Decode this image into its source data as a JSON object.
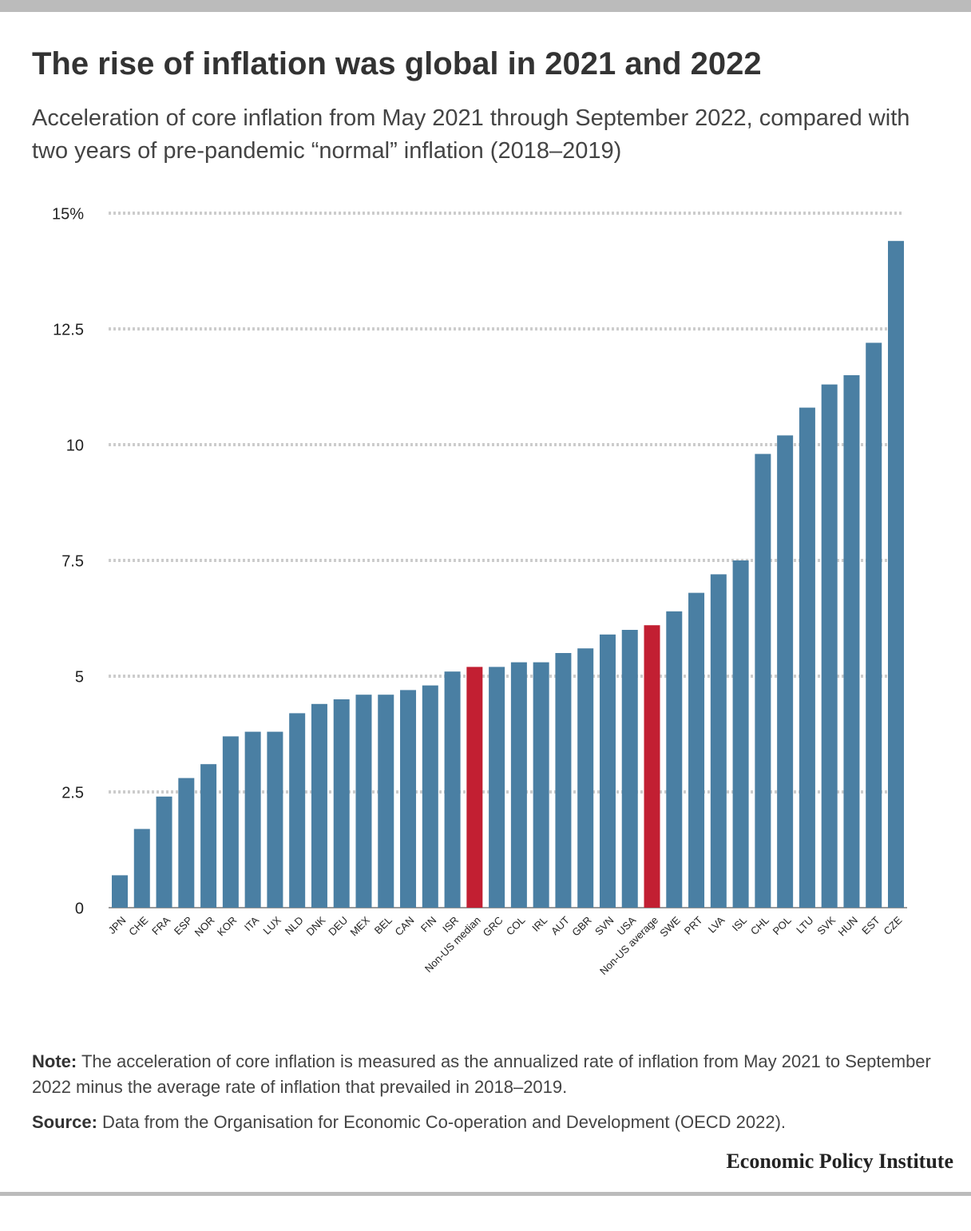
{
  "chart_data": {
    "type": "bar",
    "title": "The rise of inflation was global in 2021 and 2022",
    "subtitle": "Acceleration of core inflation from May 2021 through September 2022, compared with two years of pre-pandemic “normal” inflation (2018–2019)",
    "categories": [
      "JPN",
      "CHE",
      "FRA",
      "ESP",
      "NOR",
      "KOR",
      "ITA",
      "LUX",
      "NLD",
      "DNK",
      "DEU",
      "MEX",
      "BEL",
      "CAN",
      "FIN",
      "ISR",
      "Non-US median",
      "GRC",
      "COL",
      "IRL",
      "AUT",
      "GBR",
      "SVN",
      "USA",
      "Non-US average",
      "SWE",
      "PRT",
      "LVA",
      "ISL",
      "CHL",
      "POL",
      "LTU",
      "SVK",
      "HUN",
      "EST",
      "CZE"
    ],
    "values": [
      0.7,
      1.7,
      2.4,
      2.8,
      3.1,
      3.7,
      3.8,
      3.8,
      4.2,
      4.4,
      4.5,
      4.6,
      4.6,
      4.7,
      4.8,
      5.1,
      5.2,
      5.2,
      5.3,
      5.3,
      5.5,
      5.6,
      5.9,
      6.0,
      6.1,
      6.4,
      6.8,
      7.2,
      7.5,
      9.8,
      10.2,
      10.8,
      11.3,
      11.5,
      12.2,
      14.4
    ],
    "colors": [
      "#4a7fa3",
      "#4a7fa3",
      "#4a7fa3",
      "#4a7fa3",
      "#4a7fa3",
      "#4a7fa3",
      "#4a7fa3",
      "#4a7fa3",
      "#4a7fa3",
      "#4a7fa3",
      "#4a7fa3",
      "#4a7fa3",
      "#4a7fa3",
      "#4a7fa3",
      "#4a7fa3",
      "#4a7fa3",
      "#c21f32",
      "#4a7fa3",
      "#4a7fa3",
      "#4a7fa3",
      "#4a7fa3",
      "#4a7fa3",
      "#4a7fa3",
      "#4a7fa3",
      "#c21f32",
      "#4a7fa3",
      "#4a7fa3",
      "#4a7fa3",
      "#4a7fa3",
      "#4a7fa3",
      "#4a7fa3",
      "#4a7fa3",
      "#4a7fa3",
      "#4a7fa3",
      "#4a7fa3",
      "#4a7fa3"
    ],
    "ylim": [
      0,
      15
    ],
    "yticks": [
      0,
      2.5,
      5,
      7.5,
      10,
      12.5,
      {
        "value": 15,
        "label": "15%"
      }
    ],
    "grid": true,
    "note": {
      "label": "Note:",
      "text": "The acceleration of core inflation is measured as the annualized rate of inflation from May 2021 to September 2022 minus the average rate of inflation that prevailed in 2018–2019."
    },
    "source": {
      "label": "Source:",
      "text": "Data from the Organisation for Economic Co-operation and Development (OECD 2022)."
    },
    "brand": "Economic Policy Institute"
  }
}
